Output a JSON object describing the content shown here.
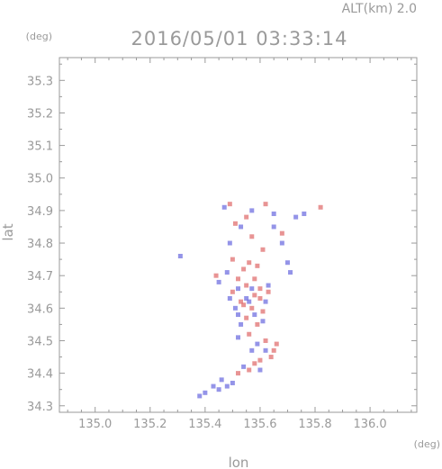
{
  "header": {
    "altitude": "ALT(km) 2.0",
    "timestamp": "2016/05/01 03:33:14"
  },
  "chart_data": {
    "type": "scatter",
    "title": "2016/05/01 03:33:14",
    "xlabel": "lon",
    "ylabel": "lat",
    "x_unit": "(deg)",
    "y_unit": "(deg)",
    "xlim": [
      134.87,
      136.17
    ],
    "ylim": [
      34.28,
      35.37
    ],
    "x_ticks": [
      "135.0",
      "135.2",
      "135.4",
      "135.6",
      "135.8",
      "136.0"
    ],
    "y_ticks": [
      "34.3",
      "34.4",
      "34.5",
      "34.6",
      "34.7",
      "34.8",
      "34.9",
      "35.0",
      "35.1",
      "35.2",
      "35.3"
    ],
    "grid": false,
    "colors": {
      "positive": "#e07070",
      "negative": "#7070e0",
      "axis": "#9a9a9a"
    },
    "series": [
      {
        "polarity": "positive",
        "points": [
          [
            135.49,
            34.92
          ],
          [
            135.55,
            34.88
          ],
          [
            135.62,
            34.92
          ],
          [
            135.82,
            34.91
          ],
          [
            135.51,
            34.86
          ],
          [
            135.61,
            34.78
          ],
          [
            135.57,
            34.82
          ],
          [
            135.5,
            34.75
          ],
          [
            135.56,
            34.74
          ],
          [
            135.54,
            34.72
          ],
          [
            135.59,
            34.73
          ],
          [
            135.52,
            34.69
          ],
          [
            135.55,
            34.67
          ],
          [
            135.6,
            34.66
          ],
          [
            135.58,
            34.64
          ],
          [
            135.63,
            34.65
          ],
          [
            135.53,
            34.62
          ],
          [
            135.57,
            34.6
          ],
          [
            135.61,
            34.59
          ],
          [
            135.55,
            34.57
          ],
          [
            135.59,
            34.55
          ],
          [
            135.56,
            34.52
          ],
          [
            135.62,
            34.5
          ],
          [
            135.66,
            34.49
          ],
          [
            135.64,
            34.45
          ],
          [
            135.6,
            34.44
          ],
          [
            135.56,
            34.41
          ],
          [
            135.52,
            34.4
          ],
          [
            135.6,
            34.63
          ],
          [
            135.5,
            34.65
          ],
          [
            135.54,
            34.61
          ],
          [
            135.58,
            34.69
          ],
          [
            135.65,
            34.47
          ],
          [
            135.58,
            34.43
          ],
          [
            135.44,
            34.7
          ],
          [
            135.68,
            34.83
          ]
        ]
      },
      {
        "polarity": "negative",
        "points": [
          [
            135.47,
            34.91
          ],
          [
            135.57,
            34.9
          ],
          [
            135.65,
            34.89
          ],
          [
            135.73,
            34.88
          ],
          [
            135.76,
            34.89
          ],
          [
            135.53,
            34.85
          ],
          [
            135.65,
            34.85
          ],
          [
            135.68,
            34.8
          ],
          [
            135.49,
            34.8
          ],
          [
            135.31,
            34.76
          ],
          [
            135.7,
            34.74
          ],
          [
            135.71,
            34.71
          ],
          [
            135.48,
            34.71
          ],
          [
            135.45,
            34.68
          ],
          [
            135.52,
            34.66
          ],
          [
            135.57,
            34.66
          ],
          [
            135.62,
            34.62
          ],
          [
            135.49,
            34.63
          ],
          [
            135.55,
            34.63
          ],
          [
            135.52,
            34.58
          ],
          [
            135.58,
            34.58
          ],
          [
            135.53,
            34.55
          ],
          [
            135.61,
            34.56
          ],
          [
            135.52,
            34.51
          ],
          [
            135.59,
            34.49
          ],
          [
            135.57,
            34.47
          ],
          [
            135.62,
            34.47
          ],
          [
            135.54,
            34.42
          ],
          [
            135.6,
            34.41
          ],
          [
            135.46,
            34.38
          ],
          [
            135.5,
            34.37
          ],
          [
            135.43,
            34.36
          ],
          [
            135.4,
            34.34
          ],
          [
            135.38,
            34.33
          ],
          [
            135.48,
            34.36
          ],
          [
            135.45,
            34.35
          ],
          [
            135.56,
            34.62
          ],
          [
            135.63,
            34.67
          ],
          [
            135.51,
            34.6
          ]
        ]
      }
    ]
  }
}
